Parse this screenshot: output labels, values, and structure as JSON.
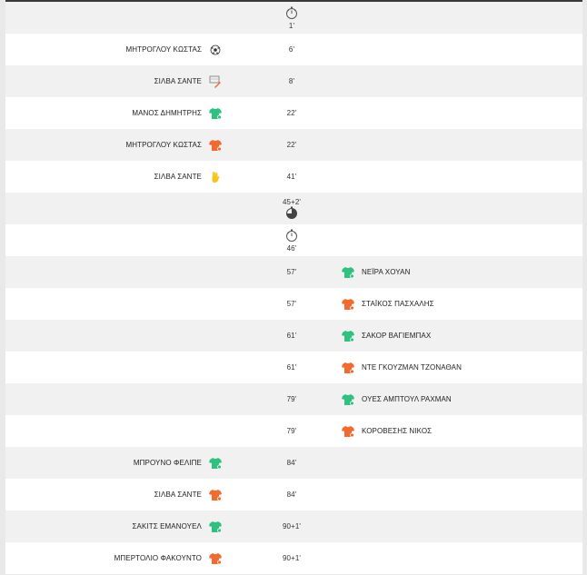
{
  "colors": {
    "sub_in": "#2ec27e",
    "sub_out": "#f26a2e",
    "yellow_card": "#f5c518",
    "header": "#3a3a3a"
  },
  "events": [
    {
      "minute": "1'",
      "side": "center",
      "icon": "stopwatch-start-icon"
    },
    {
      "minute": "6'",
      "side": "home",
      "player": "ΜΗΤΡΟΓΛΟΥ ΚΩΣΤΑΣ",
      "icon": "goal-ball-icon"
    },
    {
      "minute": "8'",
      "side": "home",
      "player": "ΣΙΛΒΑ ΣΑΝΤΕ",
      "icon": "assist-icon"
    },
    {
      "minute": "22'",
      "side": "home",
      "player": "ΜΑΝΟΣ ΔΗΜΗΤΡΗΣ",
      "icon": "sub-in-icon"
    },
    {
      "minute": "22'",
      "side": "home",
      "player": "ΜΗΤΡΟΓΛΟΥ ΚΩΣΤΑΣ",
      "icon": "sub-out-icon"
    },
    {
      "minute": "41'",
      "side": "home",
      "player": "ΣΙΛΒΑ ΣΑΝΤΕ",
      "icon": "yellow-card-icon"
    },
    {
      "minute": "45+2'",
      "side": "center",
      "icon": "half-time-icon"
    },
    {
      "minute": "46'",
      "side": "center",
      "icon": "stopwatch-start-icon"
    },
    {
      "minute": "57'",
      "side": "away",
      "player": "ΝΕΪΡΑ ΧΟΥΑΝ",
      "icon": "sub-in-icon"
    },
    {
      "minute": "57'",
      "side": "away",
      "player": "ΣΤΑΪΚΟΣ ΠΑΣΧΑΛΗΣ",
      "icon": "sub-out-icon"
    },
    {
      "minute": "61'",
      "side": "away",
      "player": "ΣΑΚΟΡ ΒΑΓΙΕΜΠΑΧ",
      "icon": "sub-in-icon"
    },
    {
      "minute": "61'",
      "side": "away",
      "player": "ΝΤΕ ΓΚΟΥΖΜΑΝ ΤΖΟΝΑΘΑΝ",
      "icon": "sub-out-icon"
    },
    {
      "minute": "79'",
      "side": "away",
      "player": "ΟΥΕΣ ΑΜΠΤΟΥΛ ΡΑΧΜΑΝ",
      "icon": "sub-in-icon"
    },
    {
      "minute": "79'",
      "side": "away",
      "player": "ΚΟΡΟΒΕΣΗΣ ΝΙΚΟΣ",
      "icon": "sub-out-icon"
    },
    {
      "minute": "84'",
      "side": "home",
      "player": "ΜΠΡΟΥΝΟ ΦΕΛΙΠΕ",
      "icon": "sub-in-icon"
    },
    {
      "minute": "84'",
      "side": "home",
      "player": "ΣΙΛΒΑ ΣΑΝΤΕ",
      "icon": "sub-out-icon"
    },
    {
      "minute": "90+1'",
      "side": "home",
      "player": "ΣΑΚΙΤΣ ΕΜΑΝΟΥΕΛ",
      "icon": "sub-in-icon"
    },
    {
      "minute": "90+1'",
      "side": "home",
      "player": "ΜΠΕΡΤΟΛΙΟ ΦΑΚΟΥΝΤΟ",
      "icon": "sub-out-icon"
    }
  ]
}
